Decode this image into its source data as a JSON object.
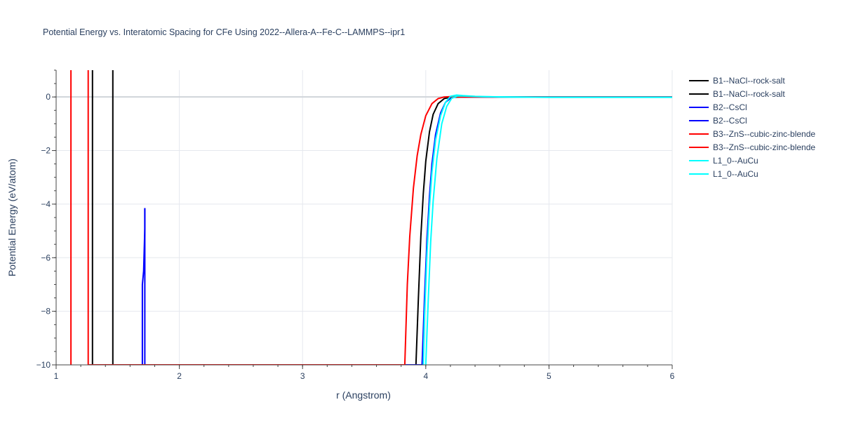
{
  "chart_data": {
    "type": "line",
    "title": "Potential Energy vs. Interatomic Spacing for CFe Using 2022--Allera-A--Fe-C--LAMMPS--ipr1",
    "xlabel": "r (Angstrom)",
    "ylabel": "Potential Energy (eV/atom)",
    "xlim": [
      1,
      6
    ],
    "ylim": [
      -10,
      1
    ],
    "x_ticks": [
      1,
      2,
      3,
      4,
      5,
      6
    ],
    "y_ticks": [
      0,
      -2,
      -4,
      -6,
      -8,
      -10
    ],
    "x_tick_labels": [
      "1",
      "2",
      "3",
      "4",
      "5",
      "6"
    ],
    "y_tick_labels": [
      "0",
      "−2",
      "−4",
      "−6",
      "−8",
      "−10"
    ],
    "grid": true,
    "legend_position": "top-right-outside",
    "series": [
      {
        "name": "B1--NaCl--rock-salt",
        "color": "#000000",
        "x": [
          1.295,
          1.295
        ],
        "y": [
          -10,
          1
        ]
      },
      {
        "name": "B1--NaCl--rock-salt",
        "color": "#000000",
        "x": [
          1.46,
          1.46,
          3.92,
          3.94,
          3.96,
          3.98,
          4.0,
          4.03,
          4.06,
          4.1,
          4.15,
          4.2,
          4.3,
          4.5,
          5.0,
          6.0
        ],
        "y": [
          1,
          -10,
          -10,
          -7.5,
          -5.2,
          -3.6,
          -2.4,
          -1.3,
          -0.65,
          -0.25,
          -0.06,
          -0.01,
          0,
          0,
          0,
          0
        ]
      },
      {
        "name": "B2--CsCl",
        "color": "#0000ff",
        "x": [
          1.7,
          1.7,
          1.71,
          1.72,
          1.72
        ],
        "y": [
          -10,
          -7.0,
          -6.5,
          -4.9,
          -4.15
        ]
      },
      {
        "name": "B2--CsCl",
        "color": "#0000ff",
        "x": [
          1.72,
          1.72,
          3.97,
          3.99,
          4.01,
          4.03,
          4.05,
          4.08,
          4.12,
          4.16,
          4.2,
          4.25,
          4.3,
          4.5,
          5.0,
          6.0
        ],
        "y": [
          -4.15,
          -10,
          -10,
          -7.5,
          -5.3,
          -3.7,
          -2.5,
          -1.4,
          -0.6,
          -0.2,
          -0.05,
          0.01,
          0,
          0,
          0,
          0
        ]
      },
      {
        "name": "B3--ZnS--cubic-zinc-blende",
        "color": "#ff0000",
        "x": [
          1.12,
          1.12
        ],
        "y": [
          -10,
          1
        ]
      },
      {
        "name": "B3--ZnS--cubic-zinc-blende",
        "color": "#ff0000",
        "x": [
          1.26,
          1.26,
          3.83,
          3.85,
          3.87,
          3.9,
          3.93,
          3.96,
          4.0,
          4.05,
          4.1,
          4.15,
          4.2,
          4.3,
          4.5,
          5.0,
          6.0
        ],
        "y": [
          1,
          -10,
          -10,
          -7.0,
          -5.2,
          -3.4,
          -2.2,
          -1.4,
          -0.7,
          -0.25,
          -0.06,
          0,
          0.01,
          0,
          0,
          0,
          0
        ]
      },
      {
        "name": "L1_0--AuCu",
        "color": "#00ffff",
        "x": [
          3.98,
          3.99,
          4.01,
          4.03,
          4.05,
          4.08,
          4.12,
          4.16,
          4.2,
          4.25,
          4.3,
          4.4,
          4.6,
          5.0,
          6.0
        ],
        "y": [
          -10,
          -8.2,
          -5.8,
          -4.1,
          -2.8,
          -1.6,
          -0.7,
          -0.2,
          0.02,
          0.07,
          0.05,
          0.02,
          0.0,
          -0.01,
          -0.01
        ]
      },
      {
        "name": "L1_0--AuCu",
        "color": "#00ffff",
        "x": [
          4.0,
          4.02,
          4.04,
          4.06,
          4.09,
          4.13,
          4.17,
          4.21,
          4.26,
          4.32,
          4.45,
          4.7,
          5.0,
          6.0
        ],
        "y": [
          -10,
          -7.6,
          -5.4,
          -3.9,
          -2.3,
          -1.0,
          -0.35,
          -0.05,
          0.04,
          0.03,
          0.01,
          0.0,
          -0.01,
          -0.01
        ]
      }
    ]
  }
}
